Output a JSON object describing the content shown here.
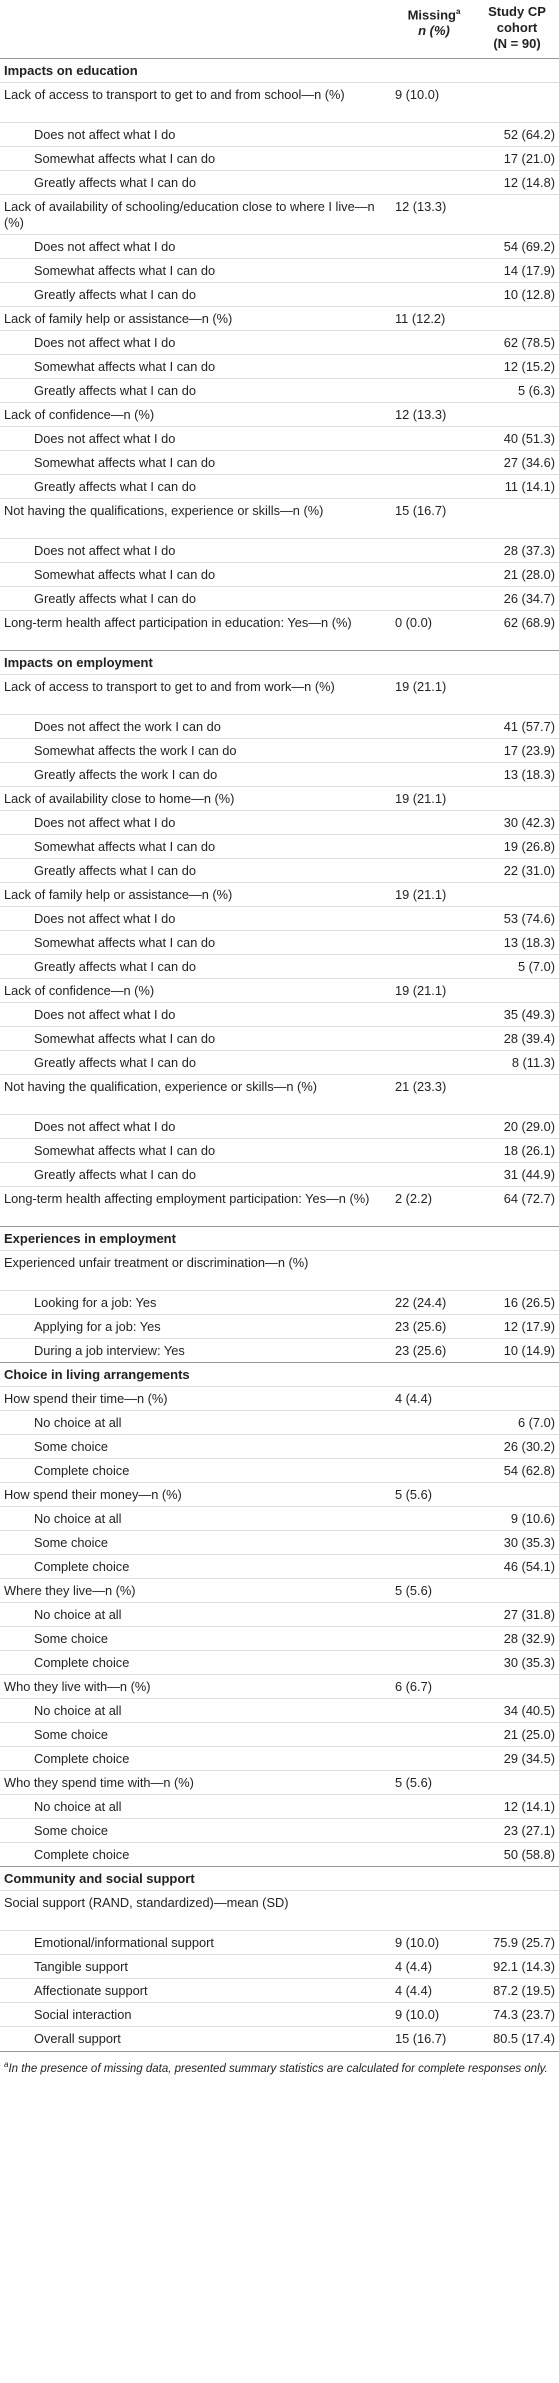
{
  "header": {
    "col1": "",
    "col2_line1": "Missing",
    "col2_sup": "a",
    "col2_line2": "n (%)",
    "col3_line1": "Study CP",
    "col3_line2": "cohort",
    "col3_line3": "(N = 90)"
  },
  "rows": [
    {
      "kind": "sec",
      "label": "Impacts on education",
      "missing": "",
      "study": ""
    },
    {
      "kind": "q",
      "lines": 2,
      "label": "Lack of access to transport to get to and from school—n (%)",
      "missing": "9 (10.0)",
      "study": ""
    },
    {
      "kind": "a",
      "label": "Does not affect what I do",
      "missing": "",
      "study": "52 (64.2)"
    },
    {
      "kind": "a",
      "label": "Somewhat affects what I can do",
      "missing": "",
      "study": "17 (21.0)"
    },
    {
      "kind": "a",
      "label": "Greatly affects what I can do",
      "missing": "",
      "study": "12 (14.8)"
    },
    {
      "kind": "q",
      "lines": 2,
      "label": "Lack of availability of schooling/education close to where I live—n (%)",
      "missing": "12 (13.3)",
      "study": ""
    },
    {
      "kind": "a",
      "label": "Does not affect what I do",
      "missing": "",
      "study": "54 (69.2)"
    },
    {
      "kind": "a",
      "label": "Somewhat affects what I can do",
      "missing": "",
      "study": "14 (17.9)"
    },
    {
      "kind": "a",
      "label": "Greatly affects what I can do",
      "missing": "",
      "study": "10 (12.8)"
    },
    {
      "kind": "q",
      "label": "Lack of family help or assistance—n (%)",
      "missing": "11 (12.2)",
      "study": ""
    },
    {
      "kind": "a",
      "label": "Does not affect what I do",
      "missing": "",
      "study": "62 (78.5)"
    },
    {
      "kind": "a",
      "label": "Somewhat affects what I can do",
      "missing": "",
      "study": "12 (15.2)"
    },
    {
      "kind": "a",
      "label": "Greatly affects what I can do",
      "missing": "",
      "study": "5 (6.3)"
    },
    {
      "kind": "q",
      "label": "Lack of confidence—n (%)",
      "missing": "12 (13.3)",
      "study": ""
    },
    {
      "kind": "a",
      "label": "Does not affect what I do",
      "missing": "",
      "study": "40 (51.3)"
    },
    {
      "kind": "a",
      "label": "Somewhat affects what I can do",
      "missing": "",
      "study": "27 (34.6)"
    },
    {
      "kind": "a",
      "label": "Greatly affects what I can do",
      "missing": "",
      "study": "11 (14.1)"
    },
    {
      "kind": "q",
      "lines": 2,
      "label": "Not having the qualifications, experience or skills—n (%)",
      "missing": "15 (16.7)",
      "study": ""
    },
    {
      "kind": "a",
      "label": "Does not affect what I do",
      "missing": "",
      "study": "28 (37.3)"
    },
    {
      "kind": "a",
      "label": "Somewhat affects what I can do",
      "missing": "",
      "study": "21 (28.0)"
    },
    {
      "kind": "a",
      "label": "Greatly affects what I can do",
      "missing": "",
      "study": "26 (34.7)"
    },
    {
      "kind": "q",
      "lines": 2,
      "label": "Long-term health affect participation in education: Yes—n (%)",
      "missing": "0 (0.0)",
      "study": "62 (68.9)"
    },
    {
      "kind": "sec",
      "label": "Impacts on employment",
      "missing": "",
      "study": ""
    },
    {
      "kind": "q",
      "lines": 2,
      "label": "Lack of access to transport to get to and from work—n (%)",
      "missing": "19 (21.1)",
      "study": ""
    },
    {
      "kind": "a",
      "label": "Does not affect the work I can do",
      "missing": "",
      "study": "41 (57.7)"
    },
    {
      "kind": "a",
      "label": "Somewhat affects the work I can do",
      "missing": "",
      "study": "17 (23.9)"
    },
    {
      "kind": "a",
      "label": "Greatly affects the work I can do",
      "missing": "",
      "study": "13 (18.3)"
    },
    {
      "kind": "q",
      "label": "Lack of availability close to home—n (%)",
      "missing": "19 (21.1)",
      "study": ""
    },
    {
      "kind": "a",
      "label": "Does not affect what I do",
      "missing": "",
      "study": "30 (42.3)"
    },
    {
      "kind": "a",
      "label": "Somewhat affects what I can do",
      "missing": "",
      "study": "19 (26.8)"
    },
    {
      "kind": "a",
      "label": "Greatly affects what I can do",
      "missing": "",
      "study": "22 (31.0)"
    },
    {
      "kind": "q",
      "label": "Lack of family help or assistance—n (%)",
      "missing": "19 (21.1)",
      "study": ""
    },
    {
      "kind": "a",
      "label": "Does not affect what I do",
      "missing": "",
      "study": "53 (74.6)"
    },
    {
      "kind": "a",
      "label": "Somewhat affects what I can do",
      "missing": "",
      "study": "13 (18.3)"
    },
    {
      "kind": "a",
      "label": "Greatly affects what I can do",
      "missing": "",
      "study": "5 (7.0)"
    },
    {
      "kind": "q",
      "label": "Lack of confidence—n (%)",
      "missing": "19 (21.1)",
      "study": ""
    },
    {
      "kind": "a",
      "label": "Does not affect what I do",
      "missing": "",
      "study": "35 (49.3)"
    },
    {
      "kind": "a",
      "label": "Somewhat affects what I can do",
      "missing": "",
      "study": "28 (39.4)"
    },
    {
      "kind": "a",
      "label": "Greatly affects what I can do",
      "missing": "",
      "study": "8 (11.3)"
    },
    {
      "kind": "q",
      "lines": 2,
      "label": "Not having the qualification, experience or skills—n (%)",
      "missing": "21 (23.3)",
      "study": ""
    },
    {
      "kind": "a",
      "label": "Does not affect what I do",
      "missing": "",
      "study": "20 (29.0)"
    },
    {
      "kind": "a",
      "label": "Somewhat affects what I can do",
      "missing": "",
      "study": "18 (26.1)"
    },
    {
      "kind": "a",
      "label": "Greatly affects what I can do",
      "missing": "",
      "study": "31 (44.9)"
    },
    {
      "kind": "q",
      "lines": 2,
      "label": "Long-term health affecting employment participation: Yes—n (%)",
      "missing": "2 (2.2)",
      "study": "64 (72.7)"
    },
    {
      "kind": "sec",
      "label": "Experiences in employment",
      "missing": "",
      "study": ""
    },
    {
      "kind": "q",
      "lines": 2,
      "label": "Experienced unfair treatment or discrimination—n (%)",
      "missing": "",
      "study": ""
    },
    {
      "kind": "a",
      "label": "Looking for a job: Yes",
      "missing": "22 (24.4)",
      "study": "16 (26.5)"
    },
    {
      "kind": "a",
      "label": "Applying for a job: Yes",
      "missing": "23 (25.6)",
      "study": "12 (17.9)"
    },
    {
      "kind": "a",
      "label": "During a job interview: Yes",
      "missing": "23 (25.6)",
      "study": "10 (14.9)"
    },
    {
      "kind": "sec",
      "label": "Choice in living arrangements",
      "missing": "",
      "study": ""
    },
    {
      "kind": "q",
      "label": "How spend their time—n (%)",
      "missing": "4 (4.4)",
      "study": ""
    },
    {
      "kind": "a",
      "label": "No choice at all",
      "missing": "",
      "study": "6 (7.0)"
    },
    {
      "kind": "a",
      "label": "Some choice",
      "missing": "",
      "study": "26 (30.2)"
    },
    {
      "kind": "a",
      "label": "Complete choice",
      "missing": "",
      "study": "54 (62.8)"
    },
    {
      "kind": "q",
      "label": "How spend their money—n (%)",
      "missing": "5 (5.6)",
      "study": ""
    },
    {
      "kind": "a",
      "label": "No choice at all",
      "missing": "",
      "study": "9 (10.6)"
    },
    {
      "kind": "a",
      "label": "Some choice",
      "missing": "",
      "study": "30 (35.3)"
    },
    {
      "kind": "a",
      "label": "Complete choice",
      "missing": "",
      "study": "46 (54.1)"
    },
    {
      "kind": "q",
      "label": "Where they live—n (%)",
      "missing": "5 (5.6)",
      "study": ""
    },
    {
      "kind": "a",
      "label": "No choice at all",
      "missing": "",
      "study": "27 (31.8)"
    },
    {
      "kind": "a",
      "label": "Some choice",
      "missing": "",
      "study": "28 (32.9)"
    },
    {
      "kind": "a",
      "label": "Complete choice",
      "missing": "",
      "study": "30 (35.3)"
    },
    {
      "kind": "q",
      "label": "Who they live with—n (%)",
      "missing": "6 (6.7)",
      "study": ""
    },
    {
      "kind": "a",
      "label": "No choice at all",
      "missing": "",
      "study": "34 (40.5)"
    },
    {
      "kind": "a",
      "label": "Some choice",
      "missing": "",
      "study": "21 (25.0)"
    },
    {
      "kind": "a",
      "label": "Complete choice",
      "missing": "",
      "study": "29 (34.5)"
    },
    {
      "kind": "q",
      "label": "Who they spend time with—n (%)",
      "missing": "5 (5.6)",
      "study": ""
    },
    {
      "kind": "a",
      "label": "No choice at all",
      "missing": "",
      "study": "12 (14.1)"
    },
    {
      "kind": "a",
      "label": "Some choice",
      "missing": "",
      "study": "23 (27.1)"
    },
    {
      "kind": "a",
      "label": "Complete choice",
      "missing": "",
      "study": "50 (58.8)"
    },
    {
      "kind": "sec",
      "label": "Community and social support",
      "missing": "",
      "study": ""
    },
    {
      "kind": "q",
      "lines": 2,
      "label": "Social support (RAND, standardized)—mean (SD)",
      "missing": "",
      "study": ""
    },
    {
      "kind": "a",
      "label": "Emotional/informational support",
      "missing": "9 (10.0)",
      "study": "75.9 (25.7)"
    },
    {
      "kind": "a",
      "label": "Tangible support",
      "missing": "4 (4.4)",
      "study": "92.1 (14.3)"
    },
    {
      "kind": "a",
      "label": "Affectionate support",
      "missing": "4 (4.4)",
      "study": "87.2 (19.5)"
    },
    {
      "kind": "a",
      "label": "Social interaction",
      "missing": "9 (10.0)",
      "study": "74.3 (23.7)"
    },
    {
      "kind": "a",
      "label": "Overall support",
      "missing": "15 (16.7)",
      "study": "80.5 (17.4)"
    }
  ],
  "footnote": {
    "marker": "a",
    "text": "In the presence of missing data, presented summary statistics are calculated for complete responses only."
  }
}
